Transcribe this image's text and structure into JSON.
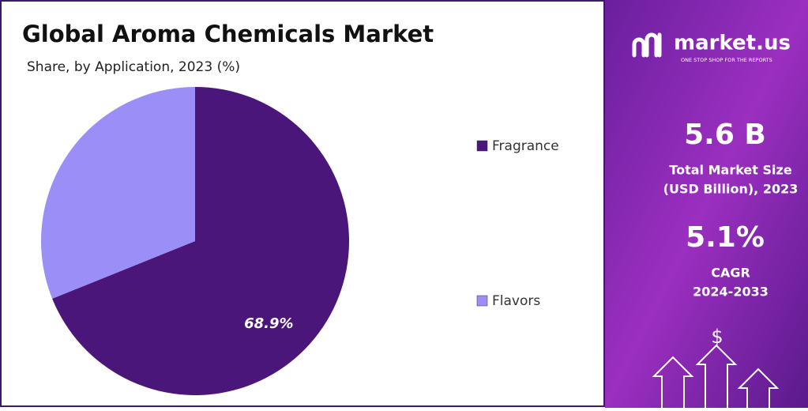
{
  "chart_data": {
    "type": "pie",
    "title": "Global Aroma Chemicals Market",
    "subtitle": "Share, by Application, 2023 (%)",
    "categories": [
      "Fragrance",
      "Flavors"
    ],
    "values": [
      68.9,
      31.1
    ],
    "value_labels": [
      "68.9%",
      null
    ],
    "colors": [
      "#4b167a",
      "#9b8ff7"
    ],
    "legend": "right"
  },
  "panel": {
    "brand": "market.us",
    "tagline": "ONE STOP SHOP FOR THE REPORTS",
    "stats": [
      {
        "value": "5.6 B",
        "label_lines": [
          "Total Market Size",
          "(USD Billion), 2023"
        ]
      },
      {
        "value": "5.1%",
        "label_lines": [
          "CAGR",
          "2024-2033"
        ]
      }
    ]
  }
}
